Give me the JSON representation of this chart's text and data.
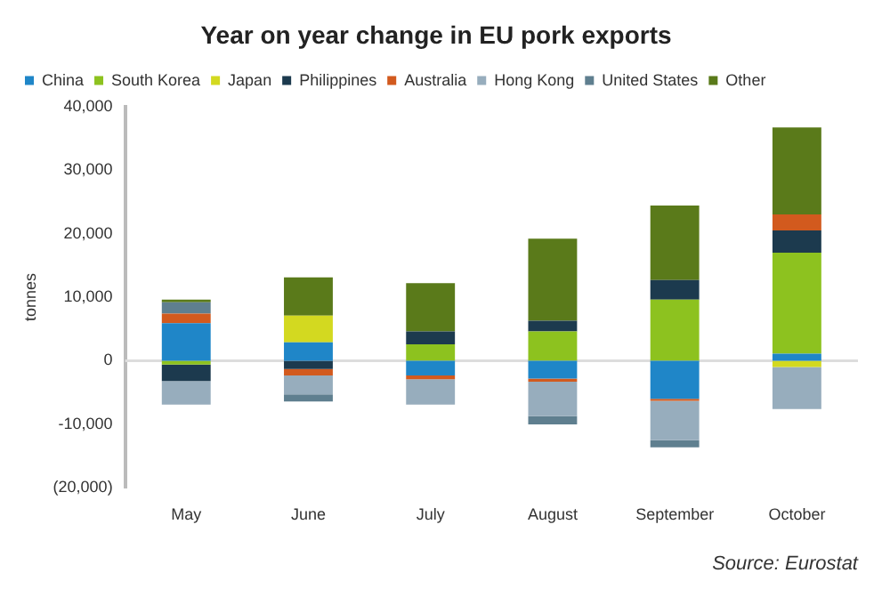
{
  "chart_data": {
    "type": "bar",
    "title": "Year on year change in EU pork exports",
    "ylabel": "tonnes",
    "stacked": true,
    "legend": "top",
    "grid": false,
    "categories": [
      "May",
      "June",
      "July",
      "August",
      "September",
      "October"
    ],
    "series": [
      {
        "name": "China",
        "color": "#1f86c8",
        "values": [
          5900,
          2900,
          -2300,
          -2800,
          -6000,
          1100
        ]
      },
      {
        "name": "South Korea",
        "color": "#8dc21f",
        "values": [
          -600,
          null,
          2600,
          4600,
          9600,
          15900
        ]
      },
      {
        "name": "Japan",
        "color": "#d3d920",
        "values": [
          null,
          4200,
          null,
          null,
          null,
          -1000
        ]
      },
      {
        "name": "Philippines",
        "color": "#1c3a4e",
        "values": [
          -2600,
          -1300,
          2000,
          1700,
          3100,
          3500
        ]
      },
      {
        "name": "Australia",
        "color": "#d25a1e",
        "values": [
          1500,
          -1000,
          -600,
          -500,
          -300,
          2500
        ]
      },
      {
        "name": "Hong Kong",
        "color": "#97adbd",
        "values": [
          -3700,
          -3000,
          -4000,
          -5400,
          -6200,
          -6600
        ]
      },
      {
        "name": "United States",
        "color": "#5f7f8f",
        "values": [
          1800,
          -1100,
          null,
          -1300,
          -1100,
          null
        ]
      },
      {
        "name": "Other",
        "color": "#5a7a1a",
        "values": [
          400,
          6000,
          7600,
          12900,
          11700,
          13700
        ]
      }
    ],
    "ylim": [
      -20000,
      40000
    ],
    "yticks": [
      {
        "value": -20000,
        "label": "(20,000)"
      },
      {
        "value": -10000,
        "label": "-10,000"
      },
      {
        "value": 0,
        "label": "0"
      },
      {
        "value": 10000,
        "label": "10,000"
      },
      {
        "value": 20000,
        "label": "20,000"
      },
      {
        "value": 30000,
        "label": "30,000"
      },
      {
        "value": 40000,
        "label": "40,000"
      }
    ],
    "ref_lines": [
      {
        "axis": "y",
        "value": 0,
        "color": "#dddddd"
      }
    ],
    "annotations": [
      "Source: Eurostat"
    ]
  }
}
